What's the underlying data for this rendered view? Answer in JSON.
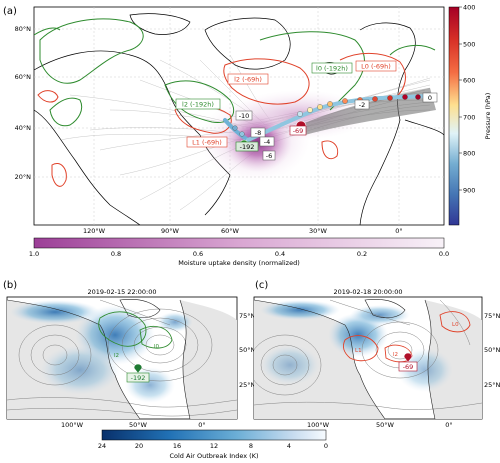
{
  "panel_a": {
    "letter": "(a)",
    "lat_labels": [
      "80°N",
      "60°N",
      "40°N",
      "20°N"
    ],
    "lon_labels": [
      "120°W",
      "90°W",
      "60°W",
      "30°W",
      "0°"
    ],
    "contour_labels": {
      "l0_green": "l0 (-192h)",
      "l0_red": "L0 (-69h)",
      "l2_red": "l2 (-69h)",
      "l2_green": "l2 (-192h)",
      "l1_red": "L1 (-69h)"
    },
    "track_labels": [
      "0",
      "-2",
      "-10",
      "-8",
      "-4",
      "-192",
      "-69",
      "-6"
    ],
    "pressure_colorbar": {
      "label": "Pressure (hPa)",
      "ticks": [
        "400",
        "500",
        "600",
        "700",
        "800",
        "900"
      ],
      "colors": [
        "#b30026",
        "#e34a33",
        "#fc8d59",
        "#fee090",
        "#e0f3f8",
        "#91bfdb",
        "#4575b4",
        "#313695"
      ]
    },
    "moisture_colorbar": {
      "label": "Moisture uptake density (normalized)",
      "ticks": [
        "1.0",
        "0.8",
        "0.6",
        "0.4",
        "0.2",
        "0.0"
      ],
      "colors": [
        "#a0409a",
        "#f7f0f7"
      ]
    }
  },
  "panel_b": {
    "letter": "(b)",
    "title": "2019-02-15 22:00:00",
    "lat_labels": [
      "75°N",
      "50°N",
      "25°N"
    ],
    "lon_labels": [
      "100°W",
      "50°W",
      "0°"
    ],
    "labels": [
      "l0",
      "l2",
      "-192"
    ]
  },
  "panel_c": {
    "letter": "(c)",
    "title": "2019-02-18 20:00:00",
    "lat_labels": [
      "75°N",
      "50°N",
      "25°N"
    ],
    "lon_labels": [
      "100°W",
      "50°W",
      "0°"
    ],
    "labels": [
      "L0",
      "L1",
      "l2",
      "-69"
    ]
  },
  "caoi_colorbar": {
    "label": "Cold Air Outbreak Index (K)",
    "ticks": [
      "24",
      "20",
      "16",
      "12",
      "8",
      "4",
      "0"
    ],
    "colors": [
      "#08306b",
      "#2171b5",
      "#6baed6",
      "#c6dbef",
      "#f7fbff"
    ]
  }
}
